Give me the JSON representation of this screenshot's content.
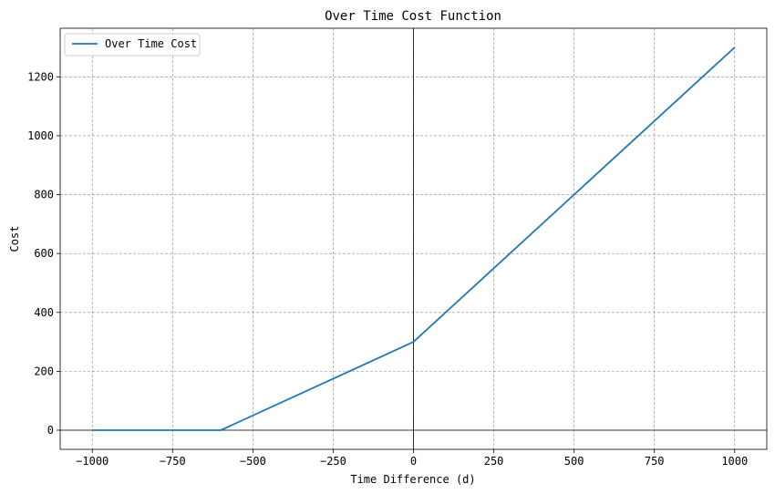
{
  "chart_data": {
    "type": "line",
    "title": "Over Time Cost Function",
    "xlabel": "Time Difference (d)",
    "ylabel": "Cost",
    "xlim": [
      -1100,
      1100
    ],
    "ylim": [
      -65,
      1365
    ],
    "x_ticks": [
      -1000,
      -750,
      -500,
      -250,
      0,
      250,
      500,
      750,
      1000
    ],
    "x_tick_labels": [
      "−1000",
      "−750",
      "−500",
      "−250",
      "0",
      "250",
      "500",
      "750",
      "1000"
    ],
    "y_ticks": [
      0,
      200,
      400,
      600,
      800,
      1000,
      1200
    ],
    "y_tick_labels": [
      "0",
      "200",
      "400",
      "600",
      "800",
      "1000",
      "1200"
    ],
    "grid": true,
    "grid_color": "#888888",
    "reference_lines": {
      "x": 0,
      "y": 0,
      "color": "#000000"
    },
    "legend_position": "top-left",
    "series": [
      {
        "name": "Over Time Cost",
        "color": "#1f77b4",
        "x": [
          -1000,
          -600,
          0,
          1000
        ],
        "y": [
          0,
          0,
          300,
          1300
        ]
      }
    ]
  }
}
